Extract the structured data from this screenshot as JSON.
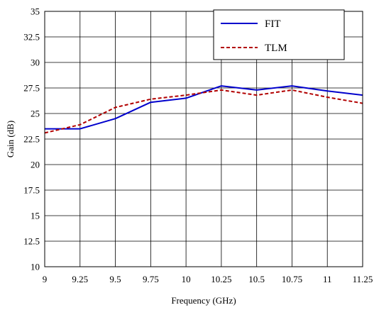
{
  "chart_data": {
    "type": "line",
    "title": "",
    "xlabel": "Frequency (GHz)",
    "ylabel": "Gain (dB)",
    "xlim": [
      9,
      11.25
    ],
    "ylim": [
      10,
      35
    ],
    "x_ticks": [
      "9",
      "9.25",
      "9.5",
      "9.75",
      "10",
      "10.25",
      "10.5",
      "10.75",
      "11",
      "11.25"
    ],
    "y_ticks": [
      "10",
      "12.5",
      "15",
      "17.5",
      "20",
      "22.5",
      "25",
      "27.5",
      "30",
      "32.5",
      "35"
    ],
    "grid": true,
    "legend_position": "top-right",
    "x": [
      9,
      9.25,
      9.5,
      9.75,
      10,
      10.25,
      10.5,
      10.75,
      11,
      11.25
    ],
    "series": [
      {
        "name": "FIT",
        "color": "#0000cc",
        "line_style": "solid",
        "values": [
          23.5,
          23.5,
          24.5,
          26.1,
          26.5,
          27.7,
          27.3,
          27.7,
          27.2,
          26.8
        ]
      },
      {
        "name": "TLM",
        "color": "#b20000",
        "line_style": "dashed",
        "values": [
          23.1,
          23.9,
          25.6,
          26.4,
          26.8,
          27.3,
          26.8,
          27.3,
          26.6,
          26.0
        ]
      }
    ]
  }
}
